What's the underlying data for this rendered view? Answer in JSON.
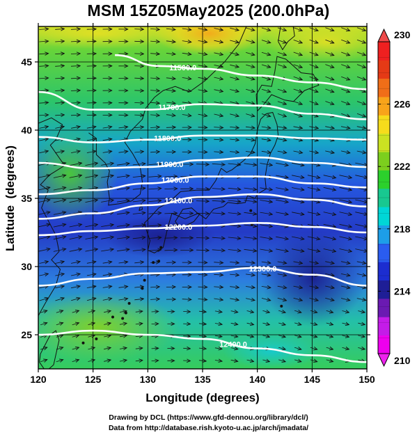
{
  "title": "MSM 15Z05May2025 (200.0hPa)",
  "map": {
    "xlabel": "Longitude (degrees)",
    "ylabel": "Latitude  (degrees)",
    "lon_range": [
      120,
      150
    ],
    "lat_range": [
      22.5,
      47.6
    ],
    "lon_ticks": [
      "120",
      "125",
      "130",
      "135",
      "140",
      "145",
      "150"
    ],
    "lat_ticks": [
      "25",
      "30",
      "35",
      "40",
      "45"
    ],
    "field": "temperature shading with wind vectors and geopotential height contours",
    "contours": [
      {
        "label": "11500.0",
        "lat_at_lon": [
          [
            127,
            45.5
          ],
          [
            131,
            44.7
          ],
          [
            135,
            44.5
          ],
          [
            140,
            44.0
          ],
          [
            145,
            43.5
          ],
          [
            150,
            43.0
          ]
        ]
      },
      {
        "label": "11700.0",
        "lat_at_lon": [
          [
            120,
            42.8
          ],
          [
            125,
            41.5
          ],
          [
            130,
            41.5
          ],
          [
            135,
            41.9
          ],
          [
            140,
            41.8
          ],
          [
            145,
            41.2
          ],
          [
            150,
            40.8
          ]
        ]
      },
      {
        "label": "11800.0",
        "lat_at_lon": [
          [
            120,
            39.5
          ],
          [
            125,
            39.1
          ],
          [
            130,
            39.3
          ],
          [
            135,
            39.6
          ],
          [
            140,
            39.6
          ],
          [
            145,
            39.4
          ],
          [
            150,
            39.3
          ]
        ]
      },
      {
        "label": "11900.0",
        "lat_at_lon": [
          [
            120,
            37.6
          ],
          [
            125,
            37.2
          ],
          [
            130,
            37.3
          ],
          [
            135,
            37.8
          ],
          [
            140,
            38.0
          ],
          [
            145,
            37.6
          ],
          [
            150,
            37.3
          ]
        ]
      },
      {
        "label": "12000.0",
        "lat_at_lon": [
          [
            120,
            35.3
          ],
          [
            125,
            35.6
          ],
          [
            130,
            36.1
          ],
          [
            135,
            36.6
          ],
          [
            140,
            36.6
          ],
          [
            145,
            36.1
          ],
          [
            150,
            35.8
          ]
        ]
      },
      {
        "label": "12100.0",
        "lat_at_lon": [
          [
            120,
            33.5
          ],
          [
            125,
            33.9
          ],
          [
            130,
            34.5
          ],
          [
            135,
            35.1
          ],
          [
            140,
            35.3
          ],
          [
            145,
            34.9
          ],
          [
            150,
            34.4
          ]
        ]
      },
      {
        "label": "12200.0",
        "lat_at_lon": [
          [
            120,
            32.3
          ],
          [
            125,
            32.6
          ],
          [
            130,
            32.8
          ],
          [
            135,
            33.0
          ],
          [
            140,
            33.2
          ],
          [
            145,
            32.9
          ],
          [
            150,
            32.5
          ]
        ]
      },
      {
        "label": "12300.0",
        "lat_at_lon": [
          [
            120,
            28.6
          ],
          [
            125,
            29.1
          ],
          [
            130,
            29.5
          ],
          [
            135,
            29.6
          ],
          [
            140,
            29.9
          ],
          [
            145,
            29.4
          ],
          [
            150,
            28.6
          ]
        ]
      },
      {
        "label": "12400.0",
        "lat_at_lon": [
          [
            120,
            25.0
          ],
          [
            125,
            25.3
          ],
          [
            130,
            25.0
          ],
          [
            135,
            24.7
          ],
          [
            140,
            24.0
          ],
          [
            145,
            23.5
          ],
          [
            150,
            23.0
          ]
        ]
      }
    ]
  },
  "colorbar": {
    "min": 210,
    "max": 230,
    "tick_labels": [
      "230",
      "226",
      "222",
      "218",
      "214",
      "210"
    ],
    "colors": [
      "#ee00ee",
      "#c41ce8",
      "#6a1ab2",
      "#1e1e96",
      "#1c2dd0",
      "#2a5cf0",
      "#1d9ee8",
      "#00d6d6",
      "#18c890",
      "#2cd02c",
      "#7ccf1e",
      "#cbe222",
      "#f6dc1c",
      "#f8a41a",
      "#f06e18",
      "#e53a16",
      "#ee2020"
    ]
  },
  "footer": {
    "line1": "Drawing by DCL (https://www.gfd-dennou.org/library/dcl/)",
    "line2": "Data from http://database.rish.kyoto-u.ac.jp/arch/jmadata/"
  }
}
